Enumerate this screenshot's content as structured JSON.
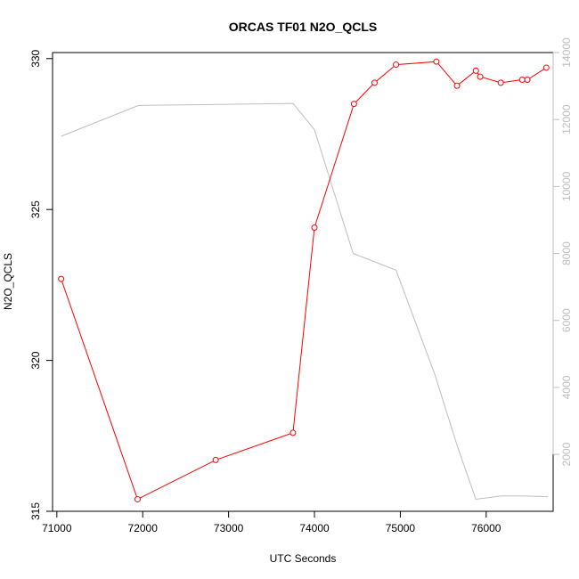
{
  "chart_data": {
    "type": "line",
    "title": "ORCAS TF01 N2O_QCLS",
    "xlabel": "UTC Seconds",
    "ylabel": "N2O_QCLS",
    "y2label": "",
    "xlim": [
      70950,
      76780
    ],
    "ylim": [
      315,
      330.2
    ],
    "y2lim": [
      300,
      14000
    ],
    "x_ticks": [
      71000,
      72000,
      73000,
      74000,
      75000,
      76000
    ],
    "y_ticks": [
      315,
      320,
      325,
      330
    ],
    "y2_ticks": [
      2000,
      4000,
      6000,
      8000,
      10000,
      12000,
      14000
    ],
    "grid": false,
    "series": [
      {
        "axis": "left",
        "color": "#ff0000",
        "markers": "open-circle",
        "x": [
          71050,
          71940,
          72850,
          73750,
          74000,
          74460,
          74700,
          74950,
          75420,
          75660,
          75880,
          75930,
          76170,
          76420,
          76480,
          76700
        ],
        "y": [
          322.7,
          315.4,
          316.7,
          317.6,
          324.4,
          328.5,
          329.2,
          329.8,
          329.9,
          329.1,
          329.6,
          329.4,
          329.2,
          329.3,
          329.3,
          329.7
        ]
      },
      {
        "axis": "right",
        "color": "#bebebe",
        "markers": "none",
        "x": [
          71050,
          71950,
          73750,
          74000,
          74450,
          74950,
          75400,
          75670,
          75880,
          76180,
          76440,
          76720
        ],
        "y": [
          11500,
          12420,
          12480,
          11700,
          8000,
          7500,
          4400,
          2200,
          660,
          760,
          760,
          730
        ]
      }
    ]
  }
}
